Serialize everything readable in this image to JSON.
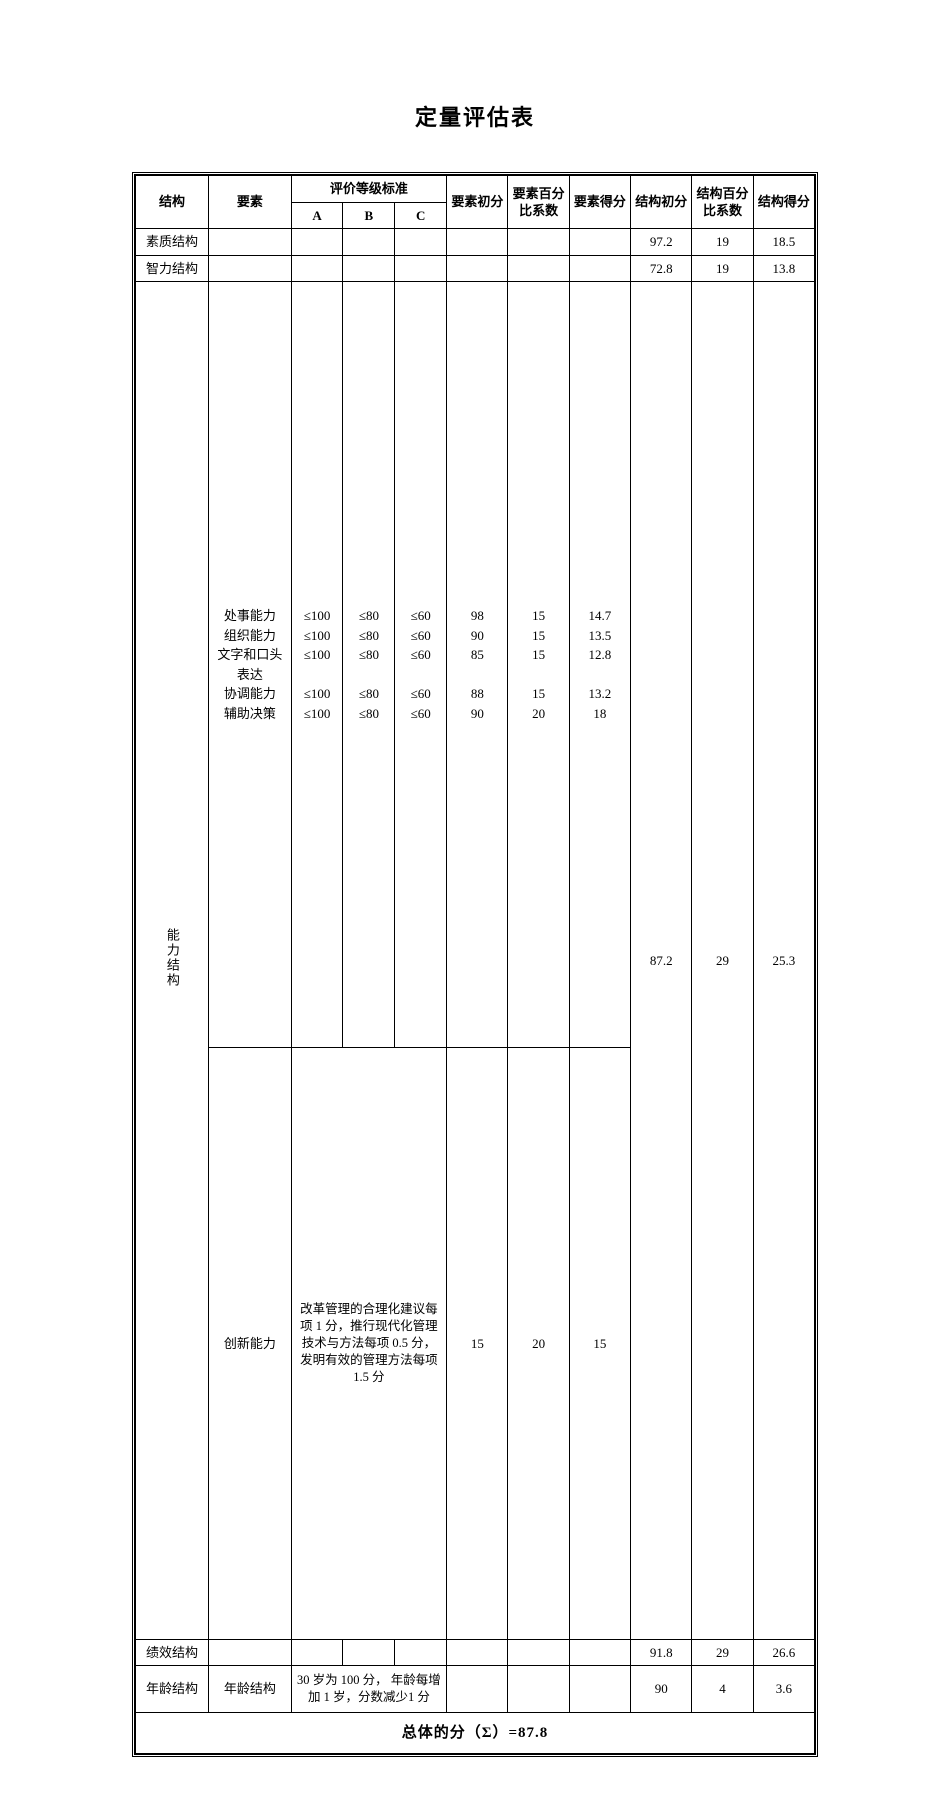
{
  "title": "定量评估表",
  "headers": {
    "structure": "结构",
    "element": "要素",
    "grade_std": "评价等级标准",
    "A": "A",
    "B": "B",
    "C": "C",
    "elem_init": "要素初分",
    "elem_pct": "要素百分比系数",
    "elem_score": "要素得分",
    "struct_init": "结构初分",
    "struct_pct": "结构百分比系数",
    "struct_score": "结构得分"
  },
  "rows": {
    "r1": {
      "structure": "素质结构",
      "struct_init": "97.2",
      "struct_pct": "19",
      "struct_score": "18.5"
    },
    "r2": {
      "structure": "智力结构",
      "struct_init": "72.8",
      "struct_pct": "19",
      "struct_score": "13.8"
    },
    "ability": {
      "structure": "能力结构",
      "elements_block1": "处事能力\n组织能力\n文字和口头表达\n协调能力\n辅助决策",
      "A_block": "≤100\n≤100\n≤100\n\n≤100\n≤100",
      "B_block": "≤80\n≤80\n≤80\n\n≤80\n≤80",
      "C_block": "≤60\n≤60\n≤60\n\n≤60\n≤60",
      "elem_init_block": "98\n90\n85\n\n88\n90",
      "elem_pct_block": "15\n15\n15\n\n15\n20",
      "elem_score_block": "14.7\n13.5\n12.8\n\n13.2\n18",
      "innovate_label": "创新能力",
      "innovate_desc": "改革管理的合理化建议每项 1 分，推行现代化管理技术与方法每项 0.5 分，发明有效的管理方法每项 1.5 分",
      "innovate_init": "15",
      "innovate_pct": "20",
      "innovate_score": "15",
      "struct_init": "87.2",
      "struct_pct": "29",
      "struct_score": "25.3"
    },
    "perf": {
      "structure": "绩效结构",
      "struct_init": "91.8",
      "struct_pct": "29",
      "struct_score": "26.6"
    },
    "age": {
      "structure": "年龄结构",
      "element": "年龄结构",
      "desc": "30 岁为 100 分， 年龄每增加 1 岁，分数减少1 分",
      "struct_init": "90",
      "struct_pct": "4",
      "struct_score": "3.6"
    }
  },
  "total": "总体的分（Σ）=87.8"
}
